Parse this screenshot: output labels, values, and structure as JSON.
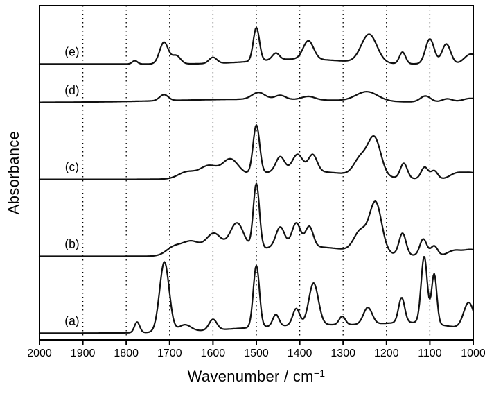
{
  "figure": {
    "background": "#ffffff",
    "line_color": "#111111",
    "grid_color": "#000000"
  },
  "chart_data": {
    "type": "line",
    "title": "",
    "description": "FT-IR absorbance spectra, five stacked traces labeled (a)-(e) with vertical offsets, x-axis reversed",
    "xlabel_main": "Wavenumber / cm",
    "xlabel_sup": "−1",
    "ylabel": "Absorbance",
    "x_range": [
      2000,
      1000
    ],
    "x_axis_reversed": true,
    "x_ticks": [
      2000,
      1900,
      1800,
      1700,
      1600,
      1500,
      1400,
      1300,
      1200,
      1100,
      1000
    ],
    "x_gridlines": [
      1900,
      1800,
      1700,
      1600,
      1500,
      1400,
      1300,
      1200,
      1100
    ],
    "y_range": [
      0,
      100
    ],
    "y_ticks_shown": false,
    "grid_style": "dotted-vertical",
    "legend_position": "none",
    "peak_format": "[center_wavenumber_cm^-1, height_arb_units, gaussian_sigma_cm^-1]",
    "series": [
      {
        "id": "a",
        "label": "(a)",
        "baseline": 2,
        "label_x": 1925,
        "peaks": [
          [
            1775,
            3.2,
            6
          ],
          [
            1712,
            21,
            11
          ],
          [
            1665,
            2,
            14
          ],
          [
            1600,
            3.2,
            9
          ],
          [
            1500,
            18.5,
            7
          ],
          [
            1455,
            3.5,
            7
          ],
          [
            1408,
            5,
            8
          ],
          [
            1368,
            12.5,
            11
          ],
          [
            1302,
            2.5,
            7
          ],
          [
            1243,
            5,
            10
          ],
          [
            1165,
            7.5,
            7
          ],
          [
            1113,
            20,
            7
          ],
          [
            1090,
            15,
            6
          ],
          [
            1010,
            8,
            12
          ],
          [
            1350,
            2.5,
            180
          ],
          [
            1120,
            2,
            80
          ]
        ]
      },
      {
        "id": "b",
        "label": "(b)",
        "baseline": 25,
        "label_x": 1925,
        "peaks": [
          [
            1690,
            2.5,
            18
          ],
          [
            1650,
            4,
            20
          ],
          [
            1598,
            6,
            18
          ],
          [
            1545,
            8.5,
            16
          ],
          [
            1500,
            19.5,
            7
          ],
          [
            1445,
            6,
            10
          ],
          [
            1408,
            7,
            10
          ],
          [
            1378,
            6,
            9
          ],
          [
            1400,
            3,
            120
          ],
          [
            1260,
            6,
            15
          ],
          [
            1225,
            15,
            14
          ],
          [
            1163,
            6.5,
            8
          ],
          [
            1115,
            5,
            8
          ],
          [
            1090,
            3,
            8
          ],
          [
            1045,
            1.5,
            15
          ],
          [
            1005,
            2,
            20
          ]
        ]
      },
      {
        "id": "c",
        "label": "(c)",
        "baseline": 48,
        "label_x": 1925,
        "peaks": [
          [
            1660,
            2,
            20
          ],
          [
            1610,
            3.5,
            20
          ],
          [
            1560,
            5,
            18
          ],
          [
            1500,
            14.5,
            7.5
          ],
          [
            1445,
            4.5,
            10
          ],
          [
            1405,
            5,
            12
          ],
          [
            1370,
            5,
            10
          ],
          [
            1400,
            2.5,
            120
          ],
          [
            1260,
            5,
            15
          ],
          [
            1228,
            11.5,
            15
          ],
          [
            1160,
            4.5,
            8
          ],
          [
            1112,
            3.5,
            8
          ],
          [
            1090,
            2.5,
            8
          ],
          [
            1040,
            1.5,
            15
          ],
          [
            1005,
            2,
            20
          ]
        ]
      },
      {
        "id": "d",
        "label": "(d)",
        "baseline": 71,
        "label_x": 1925,
        "peaks": [
          [
            1713,
            1.8,
            10
          ],
          [
            1500,
            1,
            200
          ],
          [
            1495,
            2,
            15
          ],
          [
            1445,
            1.2,
            12
          ],
          [
            1380,
            1,
            15
          ],
          [
            1245,
            2.8,
            25
          ],
          [
            1110,
            1.8,
            12
          ],
          [
            1060,
            1,
            12
          ],
          [
            1005,
            1.2,
            20
          ]
        ]
      },
      {
        "id": "e",
        "label": "(e)",
        "baseline": 82.5,
        "label_x": 1925,
        "peaks": [
          [
            1780,
            1,
            6
          ],
          [
            1713,
            6.5,
            10
          ],
          [
            1685,
            2.5,
            10
          ],
          [
            1600,
            1.8,
            9
          ],
          [
            1500,
            10,
            7
          ],
          [
            1455,
            2,
            8
          ],
          [
            1380,
            5.5,
            12
          ],
          [
            1400,
            1.5,
            100
          ],
          [
            1240,
            8.5,
            18
          ],
          [
            1163,
            3.5,
            7
          ],
          [
            1100,
            7.5,
            10
          ],
          [
            1062,
            6,
            10
          ],
          [
            1005,
            3,
            15
          ]
        ]
      }
    ]
  }
}
